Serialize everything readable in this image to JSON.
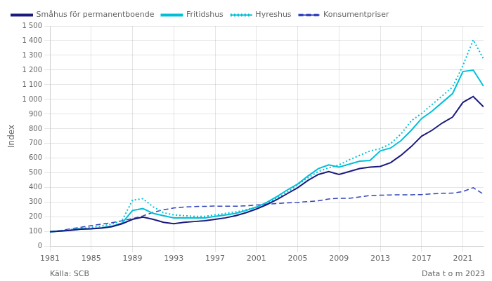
{
  "chart_data": {
    "type": "line",
    "ylabel": "Index",
    "annotations": [
      "Källa: SCB",
      "Data t o m 2023"
    ],
    "x": [
      1981,
      1982,
      1983,
      1984,
      1985,
      1986,
      1987,
      1988,
      1989,
      1990,
      1991,
      1992,
      1993,
      1994,
      1995,
      1996,
      1997,
      1998,
      1999,
      2000,
      2001,
      2002,
      2003,
      2004,
      2005,
      2006,
      2007,
      2008,
      2009,
      2010,
      2011,
      2012,
      2013,
      2014,
      2015,
      2016,
      2017,
      2018,
      2019,
      2020,
      2021,
      2022,
      2023
    ],
    "xlim": [
      1981,
      2023
    ],
    "xticks": [
      1981,
      1985,
      1989,
      1993,
      1997,
      2001,
      2005,
      2009,
      2013,
      2017,
      2021
    ],
    "ylim": [
      0,
      1500
    ],
    "yticks": [
      0,
      100,
      200,
      300,
      400,
      500,
      600,
      700,
      800,
      900,
      {
        "value": 1000,
        "label": "1 000"
      },
      {
        "value": 1100,
        "label": "1 100"
      },
      {
        "value": 1200,
        "label": "1 200"
      },
      {
        "value": 1300,
        "label": "1 300"
      },
      {
        "value": 1400,
        "label": "1 400"
      },
      {
        "value": 1500,
        "label": "1 500"
      }
    ],
    "grid": true,
    "legend": "upper left",
    "series": [
      {
        "name": "Småhus för permanentboende",
        "color": "#1a1a7e",
        "line_style": "solid",
        "values": [
          100,
          105,
          110,
          118,
          120,
          125,
          135,
          155,
          185,
          200,
          185,
          165,
          155,
          165,
          170,
          175,
          185,
          195,
          210,
          230,
          255,
          285,
          320,
          360,
          400,
          450,
          490,
          510,
          490,
          510,
          530,
          540,
          545,
          570,
          620,
          680,
          750,
          790,
          840,
          880,
          980,
          1020,
          950
        ]
      },
      {
        "name": "Fritidshus",
        "color": "#00c0d8",
        "line_style": "solid",
        "values": [
          100,
          105,
          112,
          120,
          122,
          128,
          138,
          160,
          245,
          258,
          225,
          210,
          195,
          195,
          195,
          195,
          205,
          215,
          225,
          245,
          268,
          300,
          340,
          385,
          425,
          480,
          530,
          555,
          540,
          560,
          580,
          585,
          650,
          670,
          720,
          790,
          870,
          920,
          980,
          1040,
          1190,
          1200,
          1090
        ]
      },
      {
        "name": "Hyreshus",
        "color": "#00c0d8",
        "line_style": "dotted",
        "values": [
          100,
          107,
          115,
          123,
          130,
          140,
          152,
          178,
          315,
          325,
          270,
          230,
          215,
          210,
          205,
          205,
          215,
          225,
          235,
          250,
          268,
          295,
          330,
          370,
          420,
          468,
          510,
          535,
          555,
          590,
          620,
          650,
          665,
          700,
          765,
          855,
          905,
          965,
          1025,
          1085,
          1230,
          1405,
          1275
        ]
      },
      {
        "name": "Konsumentpriser",
        "color": "#3344bb",
        "line_style": "dashed",
        "values": [
          100,
          109,
          120,
          131,
          142,
          152,
          162,
          175,
          190,
          208,
          233,
          250,
          262,
          268,
          272,
          273,
          275,
          274,
          274,
          277,
          282,
          287,
          293,
          297,
          300,
          305,
          311,
          323,
          328,
          328,
          337,
          347,
          349,
          351,
          352,
          352,
          353,
          358,
          362,
          363,
          374,
          400,
          355
        ]
      }
    ]
  }
}
